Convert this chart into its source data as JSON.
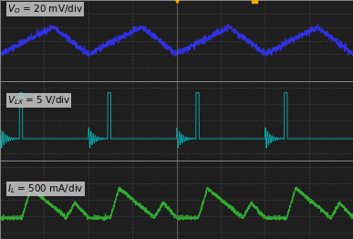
{
  "bg_color": "#1a1a1a",
  "grid_color": "#555555",
  "border_color": "#888888",
  "label_color": "#000000",
  "panel_bg": "#2a2a2a",
  "outer_bg": "#c8c8c8",
  "vo_label": "V_O = 20 mV/div",
  "vlx_label": "V_LX = 5 V/div",
  "il_label": "I_L = 500 mA/div",
  "vo_color": "#3333ff",
  "vlx_color": "#00cccc",
  "il_color": "#33bb33",
  "trigger_color": "#ffaa00",
  "num_periods": 4,
  "period": 1.0
}
